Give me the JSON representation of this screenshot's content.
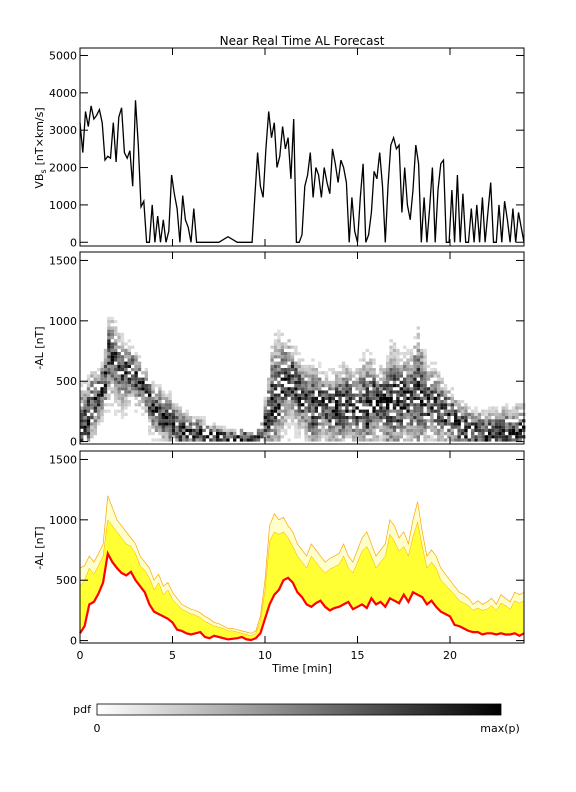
{
  "chart_data": [
    {
      "type": "line",
      "title": "Near Real Time AL Forecast",
      "ylabel": "VB",
      "ylabel_sub": "s",
      "ylabel_unit": "[nT×km/s]",
      "xlim": [
        0,
        24
      ],
      "ylim": [
        -100,
        5200
      ],
      "yticks": [
        0,
        1000,
        2000,
        3000,
        4000,
        5000
      ],
      "series": [
        {
          "color": "#000000",
          "x": [
            0,
            0.15,
            0.3,
            0.45,
            0.6,
            0.75,
            0.9,
            1.05,
            1.2,
            1.35,
            1.5,
            1.65,
            1.8,
            1.95,
            2.1,
            2.25,
            2.4,
            2.55,
            2.7,
            2.85,
            3.0,
            3.15,
            3.3,
            3.45,
            3.6,
            3.75,
            3.9,
            4.05,
            4.2,
            4.35,
            4.5,
            4.65,
            4.8,
            4.95,
            5.1,
            5.25,
            5.4,
            5.55,
            5.7,
            5.85,
            6.0,
            6.15,
            6.3,
            6.45,
            6.6,
            6.75,
            6.9,
            7.05,
            7.5,
            8.0,
            8.5,
            9.0,
            9.3,
            9.45,
            9.6,
            9.75,
            9.9,
            10.05,
            10.2,
            10.35,
            10.5,
            10.65,
            10.8,
            10.95,
            11.1,
            11.25,
            11.4,
            11.55,
            11.7,
            11.85,
            12.0,
            12.15,
            12.3,
            12.45,
            12.6,
            12.75,
            12.9,
            13.05,
            13.2,
            13.35,
            13.5,
            13.65,
            13.8,
            13.95,
            14.1,
            14.25,
            14.4,
            14.55,
            14.7,
            14.85,
            15.0,
            15.15,
            15.3,
            15.45,
            15.6,
            15.75,
            15.9,
            16.05,
            16.2,
            16.35,
            16.5,
            16.65,
            16.8,
            16.95,
            17.1,
            17.25,
            17.4,
            17.55,
            17.7,
            17.85,
            18.0,
            18.15,
            18.3,
            18.45,
            18.6,
            18.75,
            18.9,
            19.05,
            19.2,
            19.35,
            19.5,
            19.65,
            19.8,
            19.95,
            20.1,
            20.25,
            20.4,
            20.55,
            20.7,
            20.85,
            21.0,
            21.15,
            21.3,
            21.45,
            21.6,
            21.75,
            21.9,
            22.05,
            22.2,
            22.35,
            22.5,
            22.65,
            22.8,
            22.95,
            23.1,
            23.25,
            23.4,
            23.55,
            23.7,
            23.85,
            24.0
          ],
          "y": [
            3200,
            2400,
            3500,
            3100,
            3650,
            3300,
            3400,
            3550,
            3200,
            2200,
            2300,
            2250,
            3200,
            2150,
            3350,
            3600,
            2400,
            2250,
            2450,
            1500,
            3800,
            2600,
            950,
            1100,
            0,
            0,
            1000,
            0,
            700,
            0,
            600,
            0,
            300,
            1800,
            1300,
            900,
            0,
            1250,
            600,
            400,
            0,
            900,
            0,
            0,
            0,
            0,
            0,
            0,
            0,
            150,
            0,
            0,
            0,
            1200,
            2400,
            1500,
            1200,
            2500,
            3500,
            2800,
            3200,
            2000,
            2300,
            3100,
            2500,
            2800,
            1700,
            3300,
            0,
            0,
            200,
            1500,
            1800,
            2400,
            1200,
            2000,
            1800,
            1200,
            2000,
            1600,
            1300,
            2500,
            2100,
            1600,
            2200,
            2000,
            1600,
            0,
            1200,
            300,
            0,
            1200,
            2100,
            0,
            200,
            800,
            1900,
            1700,
            2400,
            1500,
            0,
            1500,
            2600,
            2800,
            2500,
            2600,
            800,
            2000,
            1000,
            600,
            1400,
            2600,
            2100,
            0,
            1200,
            0,
            900,
            2000,
            0,
            1400,
            2100,
            2200,
            0,
            0,
            1400,
            0,
            1800,
            0,
            1300,
            0,
            0,
            900,
            0,
            1000,
            0,
            1200,
            0,
            800,
            1600,
            0,
            0,
            1000,
            0,
            1100,
            600,
            0,
            900,
            0,
            800,
            400,
            0
          ]
        }
      ]
    },
    {
      "type": "heatmap",
      "ylabel": "-AL [nT]",
      "xlim": [
        0,
        24
      ],
      "ylim": [
        -20,
        1570
      ],
      "yticks": [
        0,
        500,
        1000,
        1500
      ],
      "colormap": {
        "low": "#ffffff",
        "high": "#000000"
      },
      "median_x": [
        0,
        0.25,
        0.5,
        0.75,
        1.0,
        1.25,
        1.5,
        1.75,
        2.0,
        2.25,
        2.5,
        2.75,
        3.0,
        3.25,
        3.5,
        3.75,
        4.0,
        4.25,
        4.5,
        4.75,
        5.0,
        5.25,
        5.5,
        5.75,
        6.0,
        6.25,
        6.5,
        6.75,
        7.0,
        7.25,
        7.5,
        7.75,
        8.0,
        8.25,
        8.5,
        8.75,
        9.0,
        9.25,
        9.5,
        9.75,
        10.0,
        10.25,
        10.5,
        10.75,
        11.0,
        11.25,
        11.5,
        11.75,
        12.0,
        12.25,
        12.5,
        12.75,
        13.0,
        13.25,
        13.5,
        13.75,
        14.0,
        14.25,
        14.5,
        14.75,
        15.0,
        15.25,
        15.5,
        15.75,
        16.0,
        16.25,
        16.5,
        16.75,
        17.0,
        17.25,
        17.5,
        17.75,
        18.0,
        18.25,
        18.5,
        18.75,
        19.0,
        19.25,
        19.5,
        19.75,
        20.0,
        20.25,
        20.5,
        20.75,
        21.0,
        21.25,
        21.5,
        21.75,
        22.0,
        22.25,
        22.5,
        22.75,
        23.0,
        23.25,
        23.5,
        23.75,
        24.0
      ],
      "median_y": [
        60,
        120,
        300,
        320,
        390,
        480,
        720,
        650,
        600,
        560,
        540,
        570,
        500,
        450,
        400,
        300,
        240,
        220,
        200,
        180,
        150,
        90,
        80,
        60,
        50,
        60,
        70,
        30,
        20,
        40,
        30,
        20,
        10,
        15,
        20,
        30,
        10,
        5,
        20,
        60,
        180,
        300,
        380,
        420,
        500,
        520,
        480,
        400,
        360,
        300,
        280,
        310,
        330,
        280,
        250,
        270,
        280,
        300,
        320,
        260,
        280,
        300,
        270,
        350,
        300,
        320,
        280,
        350,
        330,
        310,
        380,
        320,
        400,
        380,
        360,
        300,
        330,
        280,
        240,
        220,
        200,
        130,
        120,
        100,
        80,
        70,
        70,
        50,
        60,
        60,
        50,
        60,
        50,
        50,
        60,
        40,
        60
      ],
      "spread_top": [
        600,
        620,
        700,
        650,
        720,
        800,
        1200,
        1100,
        1000,
        950,
        900,
        850,
        800,
        700,
        650,
        600,
        500,
        550,
        450,
        480,
        400,
        350,
        300,
        280,
        260,
        250,
        230,
        200,
        180,
        150,
        140,
        120,
        100,
        100,
        90,
        80,
        70,
        60,
        80,
        200,
        500,
        950,
        1050,
        1000,
        1020,
        950,
        900,
        800,
        750,
        700,
        800,
        750,
        700,
        650,
        680,
        700,
        720,
        800,
        700,
        650,
        750,
        850,
        900,
        800,
        700,
        750,
        800,
        1000,
        950,
        850,
        900,
        800,
        1000,
        1150,
        900,
        700,
        750,
        700,
        600,
        550,
        500,
        450,
        400,
        380,
        350,
        300,
        330,
        300,
        320,
        350,
        300,
        380,
        350,
        320,
        400,
        380,
        400
      ]
    },
    {
      "type": "area",
      "ylabel": "-AL [nT]",
      "xlabel": "Time [min]",
      "xlim": [
        0,
        24
      ],
      "ylim": [
        -20,
        1570
      ],
      "xticks": [
        0,
        5,
        10,
        15,
        20
      ],
      "yticks": [
        0,
        500,
        1000,
        1500
      ],
      "colors": {
        "median": "#ff0000",
        "band": "#ffff33",
        "band_outer": "#ffffcc",
        "band_edge": "#ffa500"
      },
      "x": [
        0,
        0.25,
        0.5,
        0.75,
        1.0,
        1.25,
        1.5,
        1.75,
        2.0,
        2.25,
        2.5,
        2.75,
        3.0,
        3.25,
        3.5,
        3.75,
        4.0,
        4.25,
        4.5,
        4.75,
        5.0,
        5.25,
        5.5,
        5.75,
        6.0,
        6.25,
        6.5,
        6.75,
        7.0,
        7.25,
        7.5,
        7.75,
        8.0,
        8.25,
        8.5,
        8.75,
        9.0,
        9.25,
        9.5,
        9.75,
        10.0,
        10.25,
        10.5,
        10.75,
        11.0,
        11.25,
        11.5,
        11.75,
        12.0,
        12.25,
        12.5,
        12.75,
        13.0,
        13.25,
        13.5,
        13.75,
        14.0,
        14.25,
        14.5,
        14.75,
        15.0,
        15.25,
        15.5,
        15.75,
        16.0,
        16.25,
        16.5,
        16.75,
        17.0,
        17.25,
        17.5,
        17.75,
        18.0,
        18.25,
        18.5,
        18.75,
        19.0,
        19.25,
        19.5,
        19.75,
        20.0,
        20.25,
        20.5,
        20.75,
        21.0,
        21.25,
        21.5,
        21.75,
        22.0,
        22.25,
        22.5,
        22.75,
        23.0,
        23.25,
        23.5,
        23.75,
        24.0
      ],
      "median": [
        60,
        120,
        300,
        320,
        390,
        480,
        720,
        650,
        600,
        560,
        540,
        570,
        500,
        450,
        400,
        300,
        240,
        220,
        200,
        180,
        150,
        90,
        80,
        60,
        50,
        60,
        70,
        30,
        20,
        40,
        30,
        20,
        10,
        15,
        20,
        30,
        10,
        5,
        20,
        60,
        180,
        300,
        380,
        420,
        500,
        520,
        480,
        400,
        360,
        300,
        280,
        310,
        330,
        280,
        250,
        270,
        280,
        300,
        320,
        260,
        280,
        300,
        270,
        350,
        300,
        320,
        280,
        350,
        330,
        310,
        380,
        320,
        400,
        380,
        360,
        300,
        330,
        280,
        240,
        220,
        200,
        130,
        120,
        100,
        80,
        70,
        70,
        50,
        60,
        60,
        50,
        60,
        50,
        50,
        60,
        40,
        60
      ],
      "upper_inner": [
        450,
        500,
        600,
        550,
        620,
        700,
        1000,
        950,
        900,
        850,
        800,
        780,
        720,
        620,
        580,
        520,
        420,
        480,
        380,
        420,
        340,
        300,
        260,
        240,
        220,
        210,
        190,
        160,
        140,
        120,
        110,
        100,
        80,
        80,
        70,
        60,
        50,
        40,
        60,
        160,
        420,
        820,
        900,
        880,
        900,
        850,
        780,
        700,
        650,
        600,
        700,
        650,
        600,
        560,
        590,
        610,
        630,
        700,
        600,
        560,
        650,
        740,
        780,
        700,
        600,
        650,
        700,
        880,
        820,
        740,
        780,
        700,
        860,
        980,
        780,
        600,
        650,
        600,
        500,
        460,
        420,
        380,
        330,
        310,
        290,
        250,
        270,
        250,
        260,
        290,
        250,
        310,
        290,
        260,
        330,
        310,
        330
      ],
      "upper_outer": [
        600,
        620,
        700,
        650,
        720,
        800,
        1200,
        1100,
        1000,
        950,
        900,
        850,
        800,
        700,
        650,
        600,
        500,
        550,
        450,
        480,
        400,
        350,
        300,
        280,
        260,
        250,
        230,
        200,
        180,
        150,
        140,
        120,
        100,
        100,
        90,
        80,
        70,
        60,
        80,
        200,
        500,
        950,
        1050,
        1000,
        1020,
        950,
        900,
        800,
        750,
        700,
        800,
        750,
        700,
        650,
        680,
        700,
        720,
        800,
        700,
        650,
        750,
        850,
        900,
        800,
        700,
        750,
        800,
        1000,
        950,
        850,
        900,
        800,
        1000,
        1150,
        900,
        700,
        750,
        700,
        600,
        550,
        500,
        450,
        400,
        380,
        350,
        300,
        330,
        300,
        320,
        350,
        300,
        380,
        350,
        320,
        400,
        380,
        400
      ]
    }
  ],
  "colorbar": {
    "label": "pdf",
    "min_label": "0",
    "max_label": "max(p)",
    "low_color": "#ffffff",
    "high_color": "#000000"
  }
}
